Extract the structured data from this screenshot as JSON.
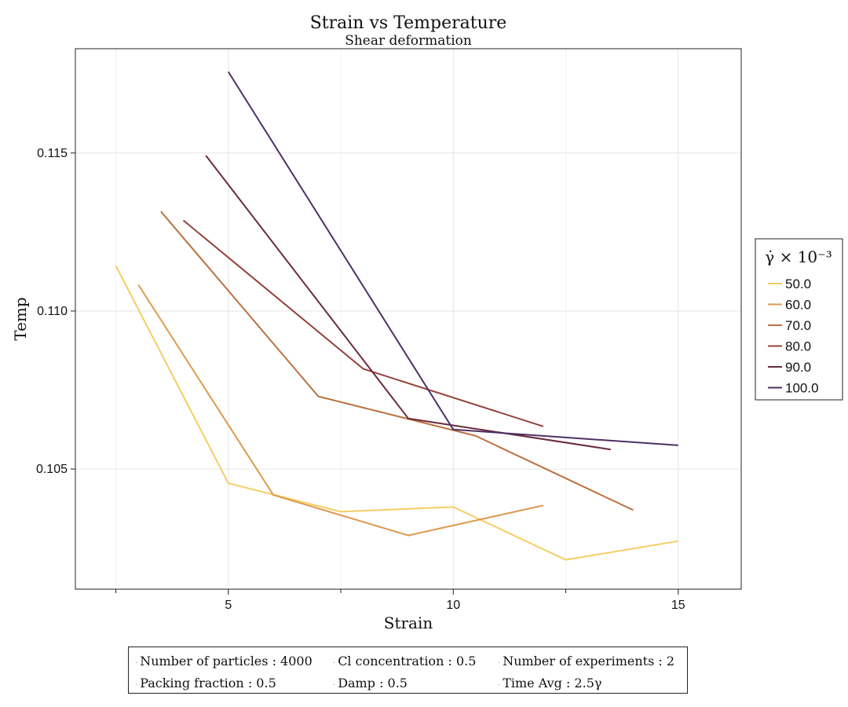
{
  "chart_data": {
    "type": "line",
    "title": "Strain vs Temperature",
    "subtitle": "Shear deformation",
    "xlabel": "Strain",
    "ylabel": "Temp",
    "xlim": [
      1.6,
      16.4
    ],
    "ylim": [
      0.1012,
      0.1183
    ],
    "xticks": [
      {
        "value": 5,
        "label": "5"
      },
      {
        "value": 10,
        "label": "10"
      },
      {
        "value": 15,
        "label": "15"
      }
    ],
    "yticks": [
      {
        "value": 0.105,
        "label": "0.105"
      },
      {
        "value": 0.11,
        "label": "0.110"
      },
      {
        "value": 0.115,
        "label": "0.115"
      }
    ],
    "x_minor_ticks": [
      2.5,
      7.5,
      12.5
    ],
    "grid": true,
    "legend": {
      "title": "γ̇ × 10⁻³",
      "placement": "right"
    },
    "series": [
      {
        "name": "50.0",
        "color": "#f6cd62",
        "x": [
          2.5,
          5.0,
          7.5,
          10.0,
          12.5,
          15.0
        ],
        "y": [
          0.11143,
          0.10455,
          0.10365,
          0.1038,
          0.10213,
          0.10272
        ]
      },
      {
        "name": "60.0",
        "color": "#dd9a4e",
        "x": [
          3.0,
          6.0,
          9.0,
          12.0
        ],
        "y": [
          0.11083,
          0.10418,
          0.1029,
          0.10385
        ]
      },
      {
        "name": "70.0",
        "color": "#bd7041",
        "x": [
          3.5,
          7.0,
          10.5,
          14.0
        ],
        "y": [
          0.11315,
          0.1073,
          0.10605,
          0.1037
        ]
      },
      {
        "name": "80.0",
        "color": "#924237",
        "x": [
          4.0,
          8.0,
          12.0
        ],
        "y": [
          0.11287,
          0.10817,
          0.10635
        ]
      },
      {
        "name": "90.0",
        "color": "#6a2b3d",
        "x": [
          4.5,
          9.0,
          13.5
        ],
        "y": [
          0.11492,
          0.1066,
          0.10562
        ]
      },
      {
        "name": "100.0",
        "color": "#4f3064",
        "x": [
          5.0,
          10.0,
          15.0
        ],
        "y": [
          0.11757,
          0.10625,
          0.10575
        ]
      }
    ]
  },
  "info": {
    "items": [
      {
        "label": "Number of particles",
        "value": "4000"
      },
      {
        "label": "Cl concentration",
        "value": "0.5"
      },
      {
        "label": "Number of experiments",
        "value": "2"
      },
      {
        "label": "Packing fraction",
        "value": "0.5"
      },
      {
        "label": "Damp",
        "value": "0.5"
      },
      {
        "label": "Time Avg",
        "value": "2.5γ"
      }
    ]
  }
}
